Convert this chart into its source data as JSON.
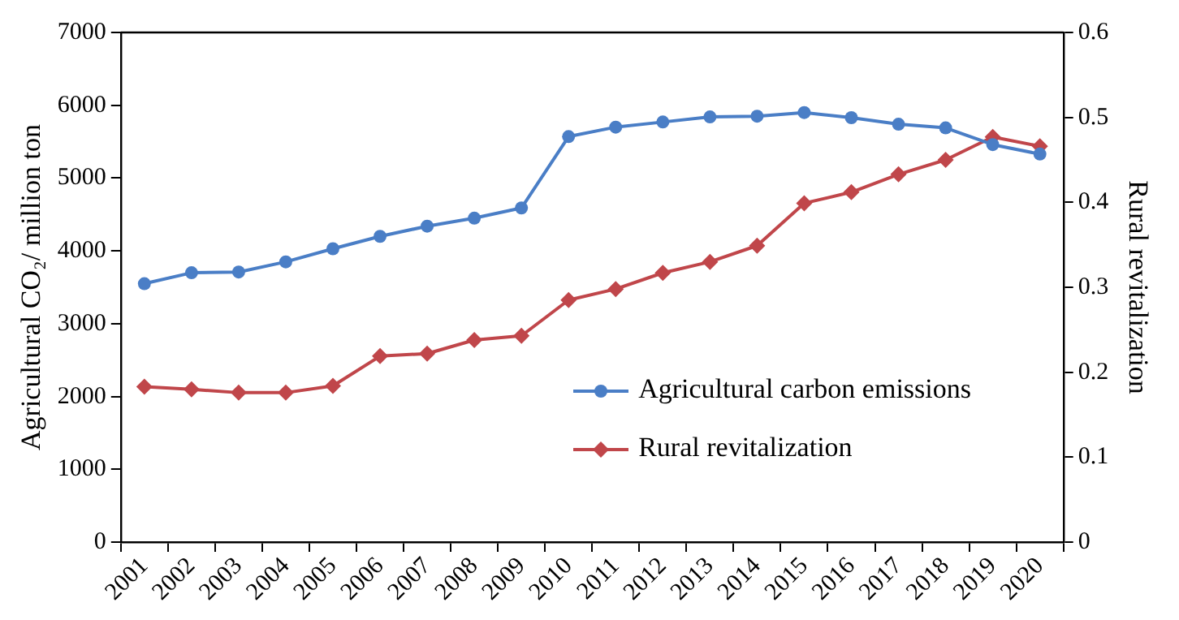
{
  "chart_data": {
    "type": "line",
    "xlabel": null,
    "ylabel": "Agricultural CO₂/ million ton",
    "y2label": "Rural revitalization",
    "categories": [
      "2001",
      "2002",
      "2003",
      "2004",
      "2005",
      "2006",
      "2007",
      "2008",
      "2009",
      "2010",
      "2011",
      "2012",
      "2013",
      "2014",
      "2015",
      "2016",
      "2017",
      "2018",
      "2019",
      "2020"
    ],
    "series": [
      {
        "name": "Agricultural carbon emissions",
        "color": "#4a7ec6",
        "marker": "circle",
        "values": [
          3550,
          3700,
          3710,
          3850,
          4030,
          4200,
          4340,
          4450,
          4590,
          5570,
          5700,
          5770,
          5840,
          5850,
          5900,
          5830,
          5740,
          5690,
          5460,
          5330
        ]
      },
      {
        "name": "Rural revitalization",
        "color": "#c0464a",
        "marker": "diamond",
        "axis": "y2",
        "values": [
          0.183,
          0.18,
          0.176,
          0.176,
          0.184,
          0.219,
          0.222,
          0.238,
          0.243,
          0.285,
          0.298,
          0.317,
          0.33,
          0.349,
          0.399,
          0.412,
          0.433,
          0.45,
          0.477,
          0.466
        ]
      }
    ],
    "ylim": [
      0,
      7000
    ],
    "yticks": [
      0,
      1000,
      2000,
      3000,
      4000,
      5000,
      6000,
      7000
    ],
    "y2lim": [
      0,
      0.6
    ],
    "y2ticks": [
      0,
      0.1,
      0.2,
      0.3,
      0.4,
      0.5,
      0.6
    ],
    "grid": false,
    "legend": "bottom right"
  }
}
